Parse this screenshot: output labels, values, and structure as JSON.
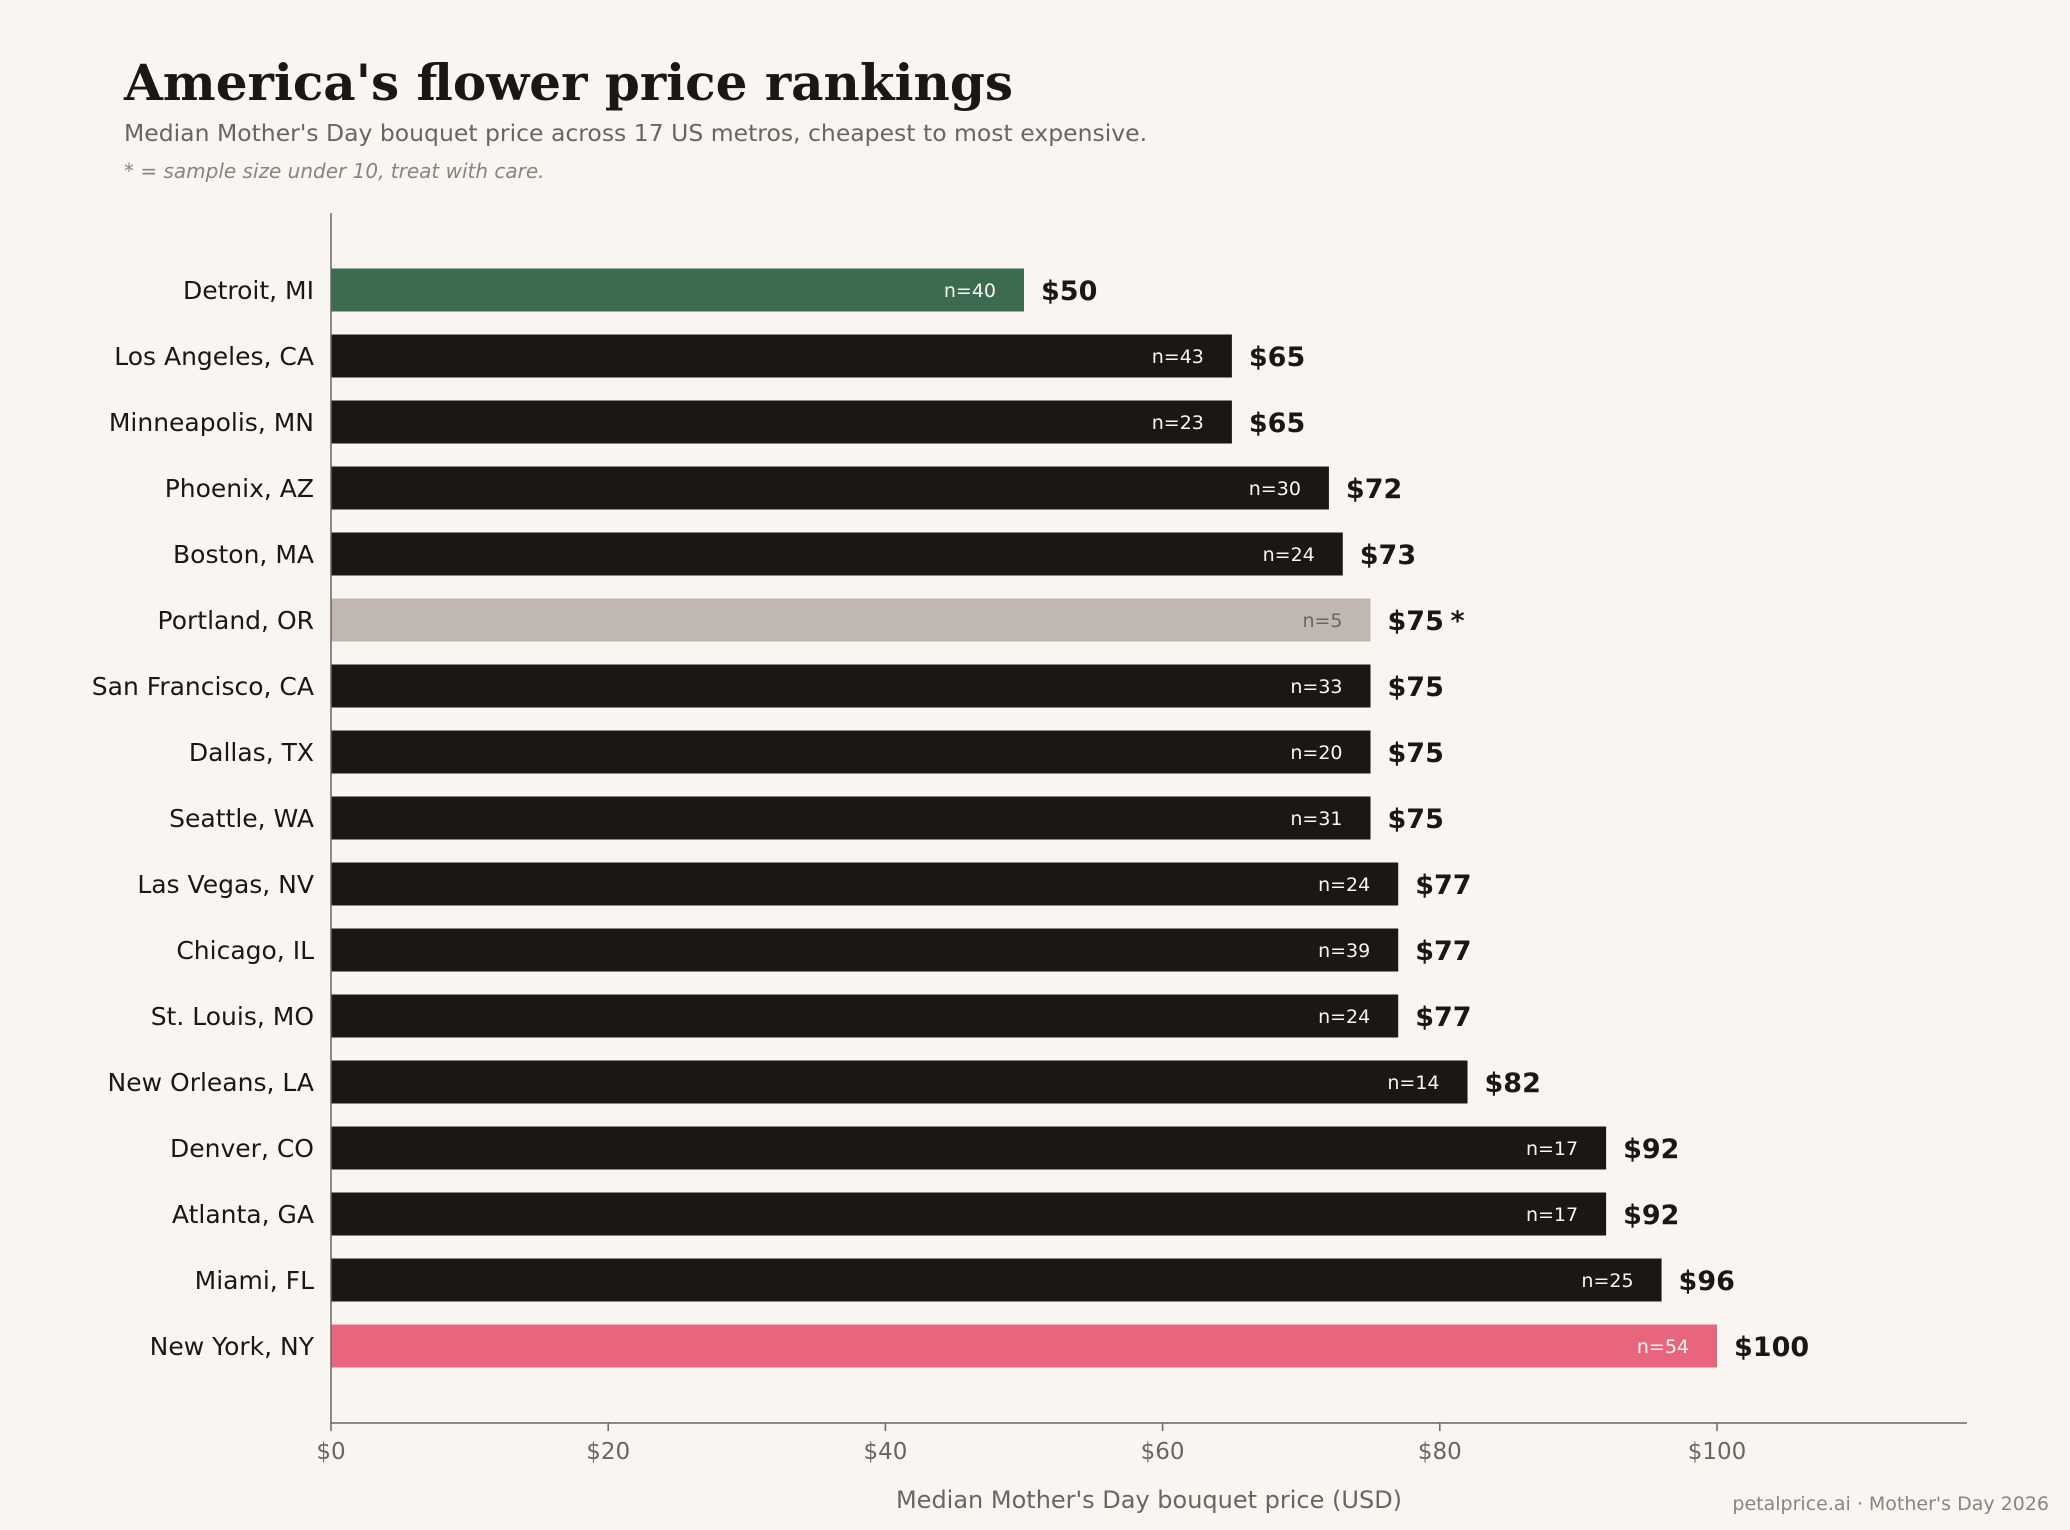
{
  "title": "America's flower price rankings",
  "subtitle": "Median Mother's Day bouquet price across 17 US metros, cheapest to most expensive.",
  "note": "* = sample size under 10, treat with care.",
  "source": "petalprice.ai · Mother's Day 2026",
  "colors": {
    "default_bar": "#1a1714",
    "cheapest": "#3d6b50",
    "most_expensive": "#e8667d",
    "low_sample": "#c0b7b0",
    "background": "#f9f6f1"
  },
  "chart_data": {
    "type": "bar",
    "orientation": "horizontal",
    "xlabel": "Median Mother's Day bouquet price (USD)",
    "xlim": [
      0,
      118
    ],
    "xticks": [
      0,
      20,
      40,
      60,
      80,
      100
    ],
    "xtick_labels": [
      "$0",
      "$20",
      "$40",
      "$60",
      "$80",
      "$100"
    ],
    "grid": false,
    "bars": [
      {
        "city": "Detroit, MI",
        "value": 50,
        "value_label": "$50",
        "n_label": "n=40",
        "highlight": "cheapest"
      },
      {
        "city": "Los Angeles, CA",
        "value": 65,
        "value_label": "$65",
        "n_label": "n=43"
      },
      {
        "city": "Minneapolis, MN",
        "value": 65,
        "value_label": "$65",
        "n_label": "n=23"
      },
      {
        "city": "Phoenix, AZ",
        "value": 72,
        "value_label": "$72",
        "n_label": "n=30"
      },
      {
        "city": "Boston, MA",
        "value": 73,
        "value_label": "$73",
        "n_label": "n=24"
      },
      {
        "city": "Portland, OR",
        "value": 75,
        "value_label": "$75",
        "n_label": "n=5",
        "flag": "*",
        "highlight": "low_sample"
      },
      {
        "city": "San Francisco, CA",
        "value": 75,
        "value_label": "$75",
        "n_label": "n=33"
      },
      {
        "city": "Dallas, TX",
        "value": 75,
        "value_label": "$75",
        "n_label": "n=20"
      },
      {
        "city": "Seattle, WA",
        "value": 75,
        "value_label": "$75",
        "n_label": "n=31"
      },
      {
        "city": "Las Vegas, NV",
        "value": 77,
        "value_label": "$77",
        "n_label": "n=24"
      },
      {
        "city": "Chicago, IL",
        "value": 77,
        "value_label": "$77",
        "n_label": "n=39"
      },
      {
        "city": "St. Louis, MO",
        "value": 77,
        "value_label": "$77",
        "n_label": "n=24"
      },
      {
        "city": "New Orleans, LA",
        "value": 82,
        "value_label": "$82",
        "n_label": "n=14"
      },
      {
        "city": "Denver, CO",
        "value": 92,
        "value_label": "$92",
        "n_label": "n=17"
      },
      {
        "city": "Atlanta, GA",
        "value": 92,
        "value_label": "$92",
        "n_label": "n=17"
      },
      {
        "city": "Miami, FL",
        "value": 96,
        "value_label": "$96",
        "n_label": "n=25"
      },
      {
        "city": "New York, NY",
        "value": 100,
        "value_label": "$100",
        "n_label": "n=54",
        "highlight": "most_expensive"
      }
    ]
  }
}
